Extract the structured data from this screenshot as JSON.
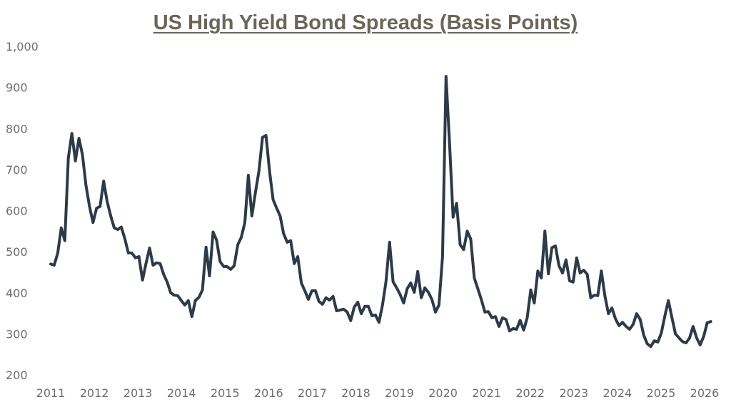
{
  "chart_data": {
    "type": "line",
    "title": "US High Yield Bond Spreads (Basis Points)",
    "xlabel": "",
    "ylabel": "",
    "x_start": "2011-01",
    "x_frequency": "monthly",
    "xlim": [
      2011,
      2026
    ],
    "ylim": [
      200,
      1000
    ],
    "x_ticks": [
      "2011",
      "2012",
      "2013",
      "2014",
      "2015",
      "2016",
      "2017",
      "2018",
      "2019",
      "2020",
      "2021",
      "2022",
      "2023",
      "2024",
      "2025",
      "2026"
    ],
    "y_ticks": [
      "1,000",
      "900",
      "800",
      "700",
      "600",
      "500",
      "400",
      "300",
      "200"
    ],
    "y_tick_values": [
      1000,
      900,
      800,
      700,
      600,
      500,
      400,
      300,
      200
    ],
    "grid": false,
    "legend": "none",
    "line_color": "#2d3a48",
    "title_color": "#6b655a",
    "values": [
      470,
      467,
      497,
      558,
      527,
      728,
      788,
      721,
      776,
      736,
      662,
      610,
      571,
      606,
      610,
      672,
      622,
      587,
      558,
      554,
      560,
      532,
      497,
      497,
      485,
      488,
      431,
      471,
      509,
      467,
      473,
      471,
      445,
      426,
      400,
      394,
      393,
      381,
      370,
      381,
      342,
      381,
      389,
      407,
      511,
      441,
      548,
      528,
      476,
      464,
      464,
      457,
      466,
      517,
      535,
      571,
      686,
      587,
      644,
      696,
      778,
      783,
      696,
      627,
      606,
      587,
      544,
      523,
      527,
      471,
      488,
      424,
      405,
      384,
      405,
      405,
      379,
      372,
      388,
      382,
      391,
      356,
      358,
      360,
      353,
      332,
      365,
      377,
      349,
      367,
      367,
      344,
      346,
      328,
      370,
      427,
      523,
      427,
      412,
      396,
      375,
      410,
      424,
      401,
      452,
      388,
      412,
      401,
      384,
      353,
      370,
      488,
      927,
      765,
      584,
      618,
      517,
      505,
      550,
      531,
      436,
      410,
      384,
      353,
      354,
      339,
      342,
      318,
      339,
      335,
      307,
      313,
      311,
      333,
      309,
      339,
      407,
      375,
      453,
      436,
      550,
      446,
      510,
      514,
      466,
      448,
      480,
      429,
      426,
      485,
      448,
      455,
      445,
      388,
      394,
      393,
      453,
      393,
      349,
      363,
      337,
      320,
      328,
      318,
      311,
      323,
      349,
      335,
      297,
      276,
      269,
      283,
      280,
      302,
      344,
      381,
      339,
      300,
      290,
      281,
      278,
      290,
      318,
      290,
      273,
      294,
      327,
      330
    ]
  }
}
